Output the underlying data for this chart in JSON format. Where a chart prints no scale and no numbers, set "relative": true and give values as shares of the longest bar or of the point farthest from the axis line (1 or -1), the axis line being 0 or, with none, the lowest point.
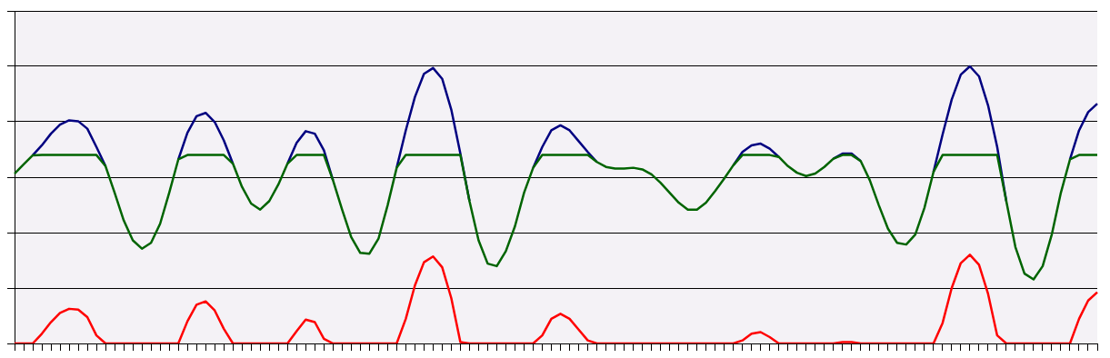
{
  "chart_data": {
    "type": "line",
    "relative": true,
    "grid": "y",
    "categories": [
      null,
      null,
      null,
      null,
      null,
      null,
      null,
      null,
      null,
      null,
      null,
      null,
      null,
      null,
      null,
      null,
      null,
      null,
      null,
      null,
      null,
      null,
      null,
      null,
      null,
      null,
      null,
      null,
      null,
      null,
      null,
      null,
      null,
      null,
      null,
      null,
      null,
      null,
      null,
      null,
      null,
      null,
      null,
      null,
      null,
      null,
      null,
      null,
      null,
      null,
      null,
      null,
      null,
      null,
      null,
      null,
      null,
      null,
      null,
      null,
      null,
      null,
      null,
      null,
      null,
      null,
      null,
      null,
      null,
      null,
      null,
      null,
      null,
      null,
      null,
      null,
      null,
      null,
      null,
      null,
      null,
      null,
      null,
      null,
      null,
      null,
      null,
      null,
      null,
      null,
      null,
      null,
      null,
      null,
      null,
      null,
      null,
      null,
      null,
      null,
      null,
      null,
      null,
      null,
      null,
      null,
      null,
      null,
      null,
      null,
      null,
      null,
      null,
      null,
      null,
      null,
      null,
      null,
      null,
      null
    ],
    "series": [
      {
        "color": "#006400",
        "values": [
          0.613,
          0.646,
          0.679,
          0.68,
          0.68,
          0.68,
          0.68,
          0.68,
          0.68,
          0.68,
          0.64,
          0.544,
          0.444,
          0.372,
          0.342,
          0.363,
          0.432,
          0.544,
          0.664,
          0.68,
          0.68,
          0.68,
          0.68,
          0.68,
          0.649,
          0.565,
          0.505,
          0.483,
          0.514,
          0.574,
          0.649,
          0.68,
          0.68,
          0.68,
          0.68,
          0.589,
          0.483,
          0.384,
          0.327,
          0.324,
          0.378,
          0.498,
          0.634,
          0.68,
          0.68,
          0.68,
          0.68,
          0.68,
          0.68,
          0.68,
          0.514,
          0.372,
          0.288,
          0.279,
          0.333,
          0.423,
          0.544,
          0.634,
          0.68,
          0.68,
          0.68,
          0.68,
          0.68,
          0.68,
          0.655,
          0.637,
          0.631,
          0.631,
          0.634,
          0.628,
          0.61,
          0.58,
          0.544,
          0.508,
          0.483,
          0.483,
          0.508,
          0.55,
          0.595,
          0.643,
          0.68,
          0.68,
          0.68,
          0.68,
          0.673,
          0.64,
          0.616,
          0.604,
          0.613,
          0.637,
          0.667,
          0.68,
          0.68,
          0.658,
          0.589,
          0.498,
          0.414,
          0.363,
          0.357,
          0.393,
          0.489,
          0.619,
          0.68,
          0.68,
          0.68,
          0.68,
          0.68,
          0.68,
          0.68,
          0.514,
          0.348,
          0.252,
          0.231,
          0.279,
          0.393,
          0.544,
          0.664,
          0.68,
          0.68,
          0.68
        ]
      },
      {
        "color": "#000080",
        "values": [
          null,
          null,
          0.679,
          0.715,
          0.757,
          0.79,
          0.805,
          0.802,
          0.775,
          0.709,
          0.64,
          null,
          null,
          null,
          null,
          null,
          null,
          null,
          0.664,
          0.76,
          0.82,
          0.832,
          0.799,
          0.733,
          0.649,
          null,
          null,
          null,
          null,
          null,
          0.649,
          0.724,
          0.766,
          0.757,
          0.697,
          0.589,
          null,
          null,
          null,
          null,
          null,
          null,
          0.634,
          0.769,
          0.889,
          0.973,
          0.994,
          0.955,
          0.844,
          0.685,
          0.514,
          null,
          null,
          null,
          null,
          null,
          null,
          0.634,
          0.709,
          0.769,
          0.787,
          0.769,
          0.73,
          0.691,
          0.655,
          null,
          null,
          null,
          null,
          null,
          null,
          null,
          null,
          null,
          null,
          null,
          null,
          null,
          null,
          0.643,
          0.691,
          0.715,
          0.721,
          0.703,
          0.673,
          null,
          null,
          null,
          null,
          null,
          0.667,
          0.685,
          0.685,
          0.658,
          null,
          null,
          null,
          null,
          null,
          null,
          null,
          0.619,
          0.754,
          0.88,
          0.97,
          1,
          0.964,
          0.859,
          0.709,
          0.514,
          null,
          null,
          null,
          null,
          null,
          null,
          0.664,
          0.769,
          0.835,
          0.865
        ]
      },
      {
        "color": "#ff0000",
        "values": [
          0,
          0,
          0,
          0.035,
          0.077,
          0.11,
          0.125,
          0.122,
          0.095,
          0.029,
          0,
          0,
          0,
          0,
          0,
          0,
          0,
          0,
          0,
          0.08,
          0.14,
          0.152,
          0.119,
          0.053,
          0,
          0,
          0,
          0,
          0,
          0,
          0,
          0.044,
          0.086,
          0.077,
          0.017,
          0,
          0,
          0,
          0,
          0,
          0,
          0,
          0,
          0.089,
          0.209,
          0.293,
          0.314,
          0.275,
          0.164,
          0.005,
          0,
          0,
          0,
          0,
          0,
          0,
          0,
          0,
          0.029,
          0.089,
          0.107,
          0.089,
          0.05,
          0.011,
          0,
          0,
          0,
          0,
          0,
          0,
          0,
          0,
          0,
          0,
          0,
          0,
          0,
          0,
          0,
          0,
          0.011,
          0.035,
          0.041,
          0.023,
          0,
          0,
          0,
          0,
          0,
          0,
          0,
          0.005,
          0.005,
          0,
          0,
          0,
          0,
          0,
          0,
          0,
          0,
          0,
          0.074,
          0.2,
          0.29,
          0.32,
          0.284,
          0.179,
          0.029,
          0,
          0,
          0,
          0,
          0,
          0,
          0,
          0,
          0.089,
          0.155,
          0.185
        ]
      }
    ]
  }
}
